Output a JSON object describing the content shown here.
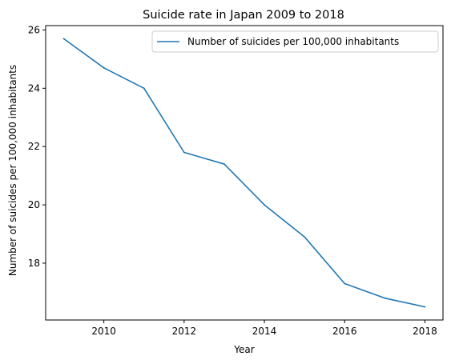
{
  "chart_data": {
    "type": "line",
    "title": "Suicide rate in Japan 2009 to 2018",
    "xlabel": "Year",
    "ylabel": "Number of suicides per 100,000 inhabitants",
    "x": [
      2009,
      2010,
      2011,
      2012,
      2013,
      2014,
      2015,
      2016,
      2017,
      2018
    ],
    "xlim": [
      2008.55,
      2018.45
    ],
    "ylim": [
      16.05,
      26.15
    ],
    "xticks": [
      2010,
      2012,
      2014,
      2016,
      2018
    ],
    "yticks": [
      18,
      20,
      22,
      24,
      26
    ],
    "grid": false,
    "legend_position": "top-right",
    "series": [
      {
        "name": "Number of suicides per 100,000 inhabitants",
        "color": "#1f77b4",
        "values": [
          25.7,
          24.7,
          24.0,
          21.8,
          21.4,
          20.0,
          18.9,
          17.3,
          16.8,
          16.5
        ]
      }
    ]
  }
}
